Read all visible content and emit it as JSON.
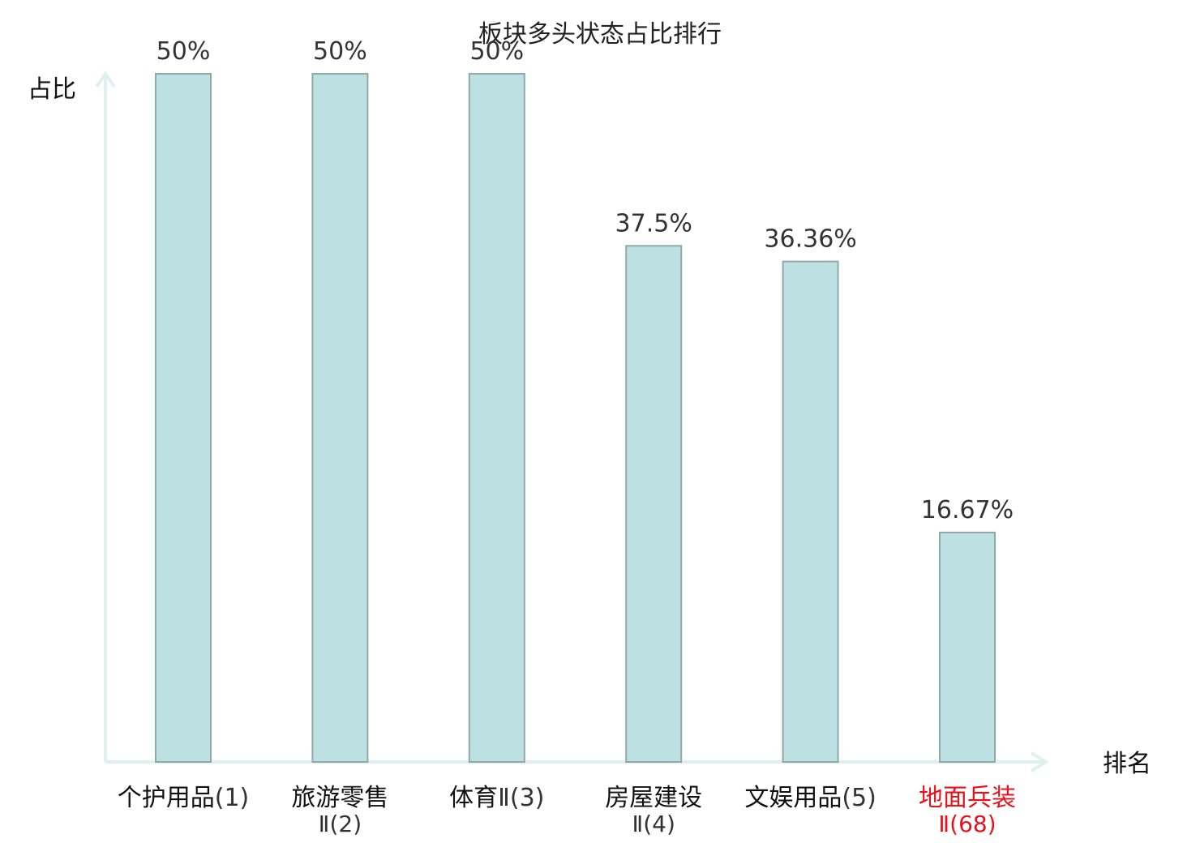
{
  "chart_data": {
    "type": "bar",
    "title": "板块多头状态占比排行",
    "xlabel": "排名",
    "ylabel": "占比",
    "ylim": [
      0,
      50
    ],
    "grid": false,
    "legend": "none",
    "categories": [
      {
        "name": "个护用品",
        "rank": "(1)",
        "sub": "",
        "highlight": false
      },
      {
        "name": "旅游零售",
        "rank": "",
        "sub": "Ⅱ(2)",
        "highlight": false
      },
      {
        "name": "体育",
        "rank": "Ⅱ(3)",
        "sub": "",
        "highlight": false
      },
      {
        "name": "房屋建设",
        "rank": "",
        "sub": "Ⅱ(4)",
        "highlight": false
      },
      {
        "name": "文娱用品",
        "rank": "(5)",
        "sub": "",
        "highlight": false
      },
      {
        "name": "地面兵装",
        "rank": "",
        "sub": "Ⅱ(68)",
        "highlight": true
      }
    ],
    "values": [
      50,
      50,
      50,
      37.5,
      36.36,
      16.67
    ],
    "value_labels": [
      "50%",
      "50%",
      "50%",
      "37.5%",
      "36.36%",
      "16.67%"
    ],
    "colors": {
      "bar_fill": "#bde1e3",
      "bar_stroke": "#8fa9ab",
      "axis": "#dff1ee",
      "label_text": "#111111",
      "rank_text": "#333333",
      "highlight": "#e8111a"
    }
  }
}
